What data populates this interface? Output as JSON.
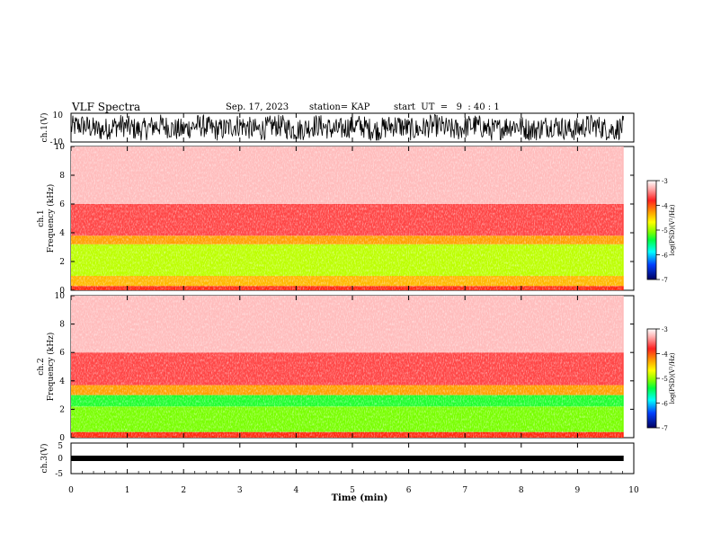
{
  "header": {
    "title": "VLF Spectra",
    "date": "Sep. 17, 2023",
    "station": "station= KAP",
    "start": "start  UT  =   9  : 40 : 1"
  },
  "chart_data": [
    {
      "type": "line",
      "name": "ch1-waveform",
      "ylabel": "ch.1(V)",
      "ylim": [
        -10,
        10
      ],
      "yticks": [
        "10",
        "-10"
      ],
      "xlim": [
        0,
        10
      ],
      "x_extent": [
        0,
        9.82
      ],
      "color": "#000000"
    },
    {
      "type": "heatmap",
      "name": "ch1-spectrogram",
      "ylabel_lines": [
        "ch.1",
        "Frequency  (kHz)"
      ],
      "ylim": [
        0,
        10
      ],
      "yticks": [
        "0",
        "2",
        "4",
        "6",
        "8",
        "10"
      ],
      "xlim": [
        0,
        10
      ],
      "x_extent": [
        0,
        9.82
      ],
      "bands": [
        {
          "from": 0,
          "to": 0.3,
          "level": -3.7
        },
        {
          "from": 0.3,
          "to": 1.0,
          "level": -4.3
        },
        {
          "from": 1.0,
          "to": 3.2,
          "level": -4.8
        },
        {
          "from": 3.2,
          "to": 3.8,
          "level": -4.2
        },
        {
          "from": 3.8,
          "to": 6.0,
          "level": -3.4
        },
        {
          "from": 6.0,
          "to": 10,
          "level": -3.1
        }
      ],
      "colorbar": {
        "label": "log(PSD)(V²/Hz)",
        "range": [
          -7,
          -3
        ],
        "ticks": [
          "-3",
          "-4",
          "-5",
          "-6",
          "-7"
        ]
      }
    },
    {
      "type": "heatmap",
      "name": "ch2-spectrogram",
      "ylabel_lines": [
        "ch.2",
        "Frequency  (kHz)"
      ],
      "ylim": [
        0,
        10
      ],
      "yticks": [
        "0",
        "2",
        "4",
        "6",
        "8",
        "10"
      ],
      "xlim": [
        0,
        10
      ],
      "x_extent": [
        0,
        9.82
      ],
      "bands": [
        {
          "from": 0,
          "to": 0.4,
          "level": -3.7
        },
        {
          "from": 0.4,
          "to": 2.2,
          "level": -5.0
        },
        {
          "from": 2.2,
          "to": 3.0,
          "level": -5.3
        },
        {
          "from": 3.0,
          "to": 3.7,
          "level": -4.2
        },
        {
          "from": 3.7,
          "to": 6.0,
          "level": -3.4
        },
        {
          "from": 6.0,
          "to": 10,
          "level": -3.1
        }
      ],
      "colorbar": {
        "label": "log(PSD)(V²/Hz)",
        "range": [
          -7,
          -3
        ],
        "ticks": [
          "-3",
          "-4",
          "-5",
          "-6",
          "-7"
        ]
      }
    },
    {
      "type": "line",
      "name": "ch3-waveform",
      "ylabel": "ch.3(V)",
      "ylim": [
        -5,
        5
      ],
      "yticks": [
        "5",
        "0",
        "-5"
      ],
      "xlim": [
        0,
        10
      ],
      "x_extent": [
        0,
        9.82
      ],
      "level": 0,
      "xlabel": "Time  (min)",
      "xticks": [
        "0",
        "1",
        "2",
        "3",
        "4",
        "5",
        "6",
        "7",
        "8",
        "9",
        "10"
      ],
      "color": "#000000"
    }
  ]
}
